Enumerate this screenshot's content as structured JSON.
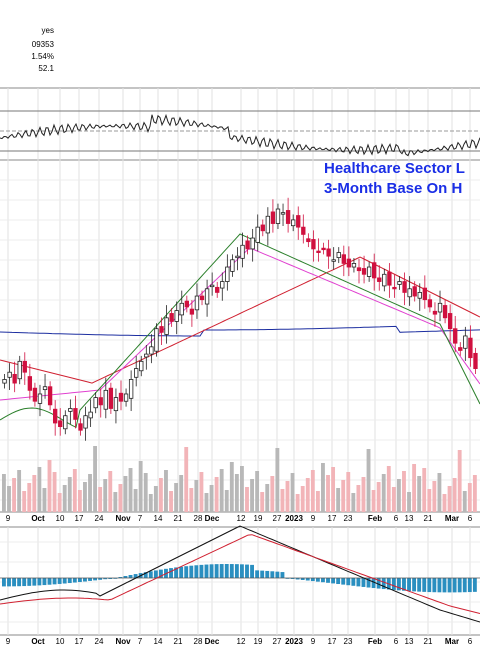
{
  "header": {
    "line1": "yes",
    "line2": "09353",
    "line3": "1.54%",
    "line4": "52.1"
  },
  "annotation": {
    "line1": "Healthcare Sector L",
    "line2": "3-Month Base On H"
  },
  "chart_data": {
    "type": "candlestick",
    "x_tick_labels": [
      "9",
      "Oct",
      "10",
      "17",
      "24",
      "Nov",
      "7",
      "14",
      "21",
      "28",
      "Dec",
      "12",
      "19",
      "27",
      "2023",
      "9",
      "17",
      "23",
      "Feb",
      "6",
      "13",
      "21",
      "Mar",
      "6"
    ],
    "x_tick_bold": [
      "Oct",
      "Nov",
      "Dec",
      "2023",
      "Feb",
      "Mar"
    ],
    "price_close": [
      70,
      72,
      69,
      75,
      72,
      67,
      64,
      66,
      68,
      63,
      58,
      57,
      60,
      62,
      59,
      56,
      60,
      61,
      65,
      63,
      67,
      62,
      65,
      64,
      66,
      70,
      73,
      75,
      77,
      79,
      84,
      83,
      87,
      86,
      89,
      91,
      90,
      88,
      93,
      92,
      95,
      96,
      94,
      97,
      101,
      103,
      104,
      107,
      106,
      109,
      112,
      111,
      115,
      113,
      117,
      116,
      113,
      114,
      112,
      110,
      108,
      106,
      105,
      106,
      104,
      103,
      105,
      102,
      101,
      102,
      100,
      99,
      101,
      98,
      97,
      99,
      96,
      95,
      97,
      94,
      95,
      93,
      94,
      92,
      90,
      88,
      91,
      87,
      84,
      80,
      78,
      82,
      76,
      73
    ],
    "panels": [
      "rsi",
      "price",
      "volume",
      "macd"
    ],
    "moving_averages": [
      "10-day",
      "21-day",
      "50-day",
      "200-day"
    ],
    "grid": true
  },
  "colors": {
    "up": "#222222",
    "down": "#d0103f",
    "ma_fast": "#2a7f2a",
    "ma_mid": "#e040d0",
    "ma_slow": "#d02030",
    "ma_long": "#1c2ea0",
    "vol_up": "#b8b8b8",
    "vol_down": "#f2b4b8",
    "macd_hist": "#2a8fc0",
    "annotation": "#1a2ee6"
  }
}
